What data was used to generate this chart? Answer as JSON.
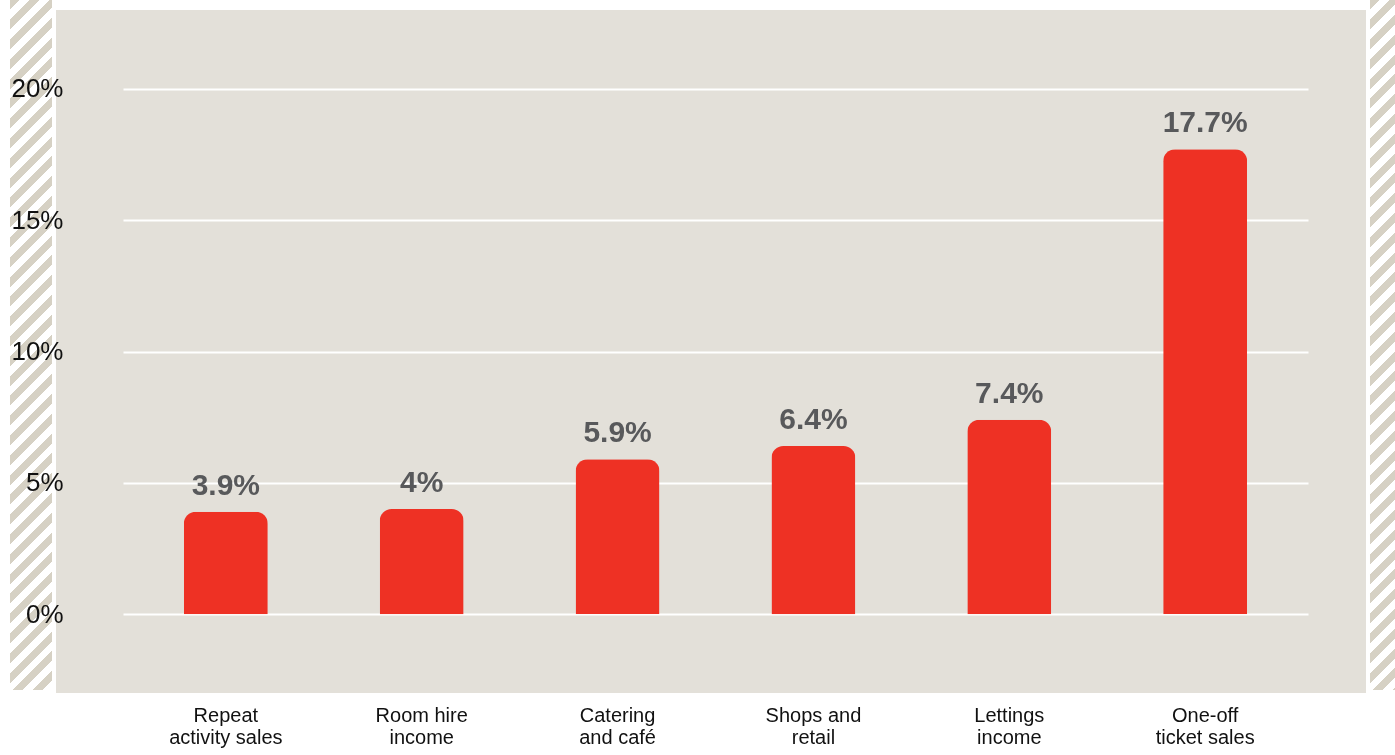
{
  "chart_data": {
    "type": "bar",
    "categories": [
      "Repeat activity sales",
      "Room hire income",
      "Catering and café",
      "Shops and retail",
      "Lettings income",
      "One-off ticket sales"
    ],
    "values": [
      3.9,
      4,
      5.9,
      6.4,
      7.4,
      17.7
    ],
    "color": "#ee3124",
    "ylim": [
      -3,
      23
    ],
    "yticks": [
      {
        "value": 0,
        "label": "0%"
      },
      {
        "value": 5,
        "label": "5%"
      },
      {
        "value": 10,
        "label": "10%"
      },
      {
        "value": 15,
        "label": "15%"
      },
      {
        "value": 20,
        "label": "20%"
      }
    ],
    "grid": "y",
    "value_labels": [
      "3.9%",
      "4%",
      "5.9%",
      "6.4%",
      "7.4%",
      "17.7%"
    ]
  }
}
